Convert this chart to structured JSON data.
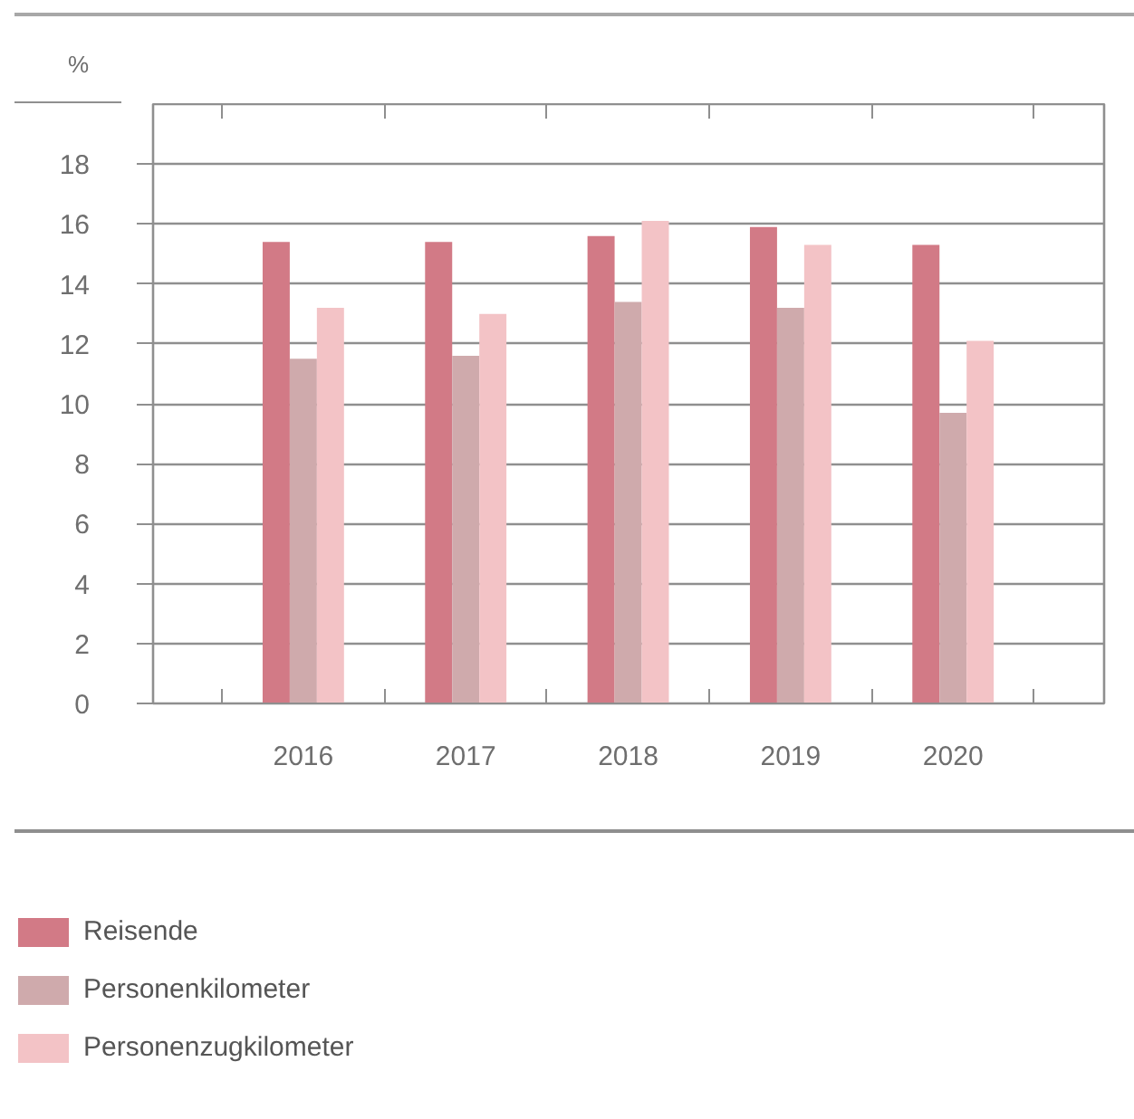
{
  "chart_data": {
    "type": "bar",
    "ylabel": "%",
    "categories": [
      "2016",
      "2017",
      "2018",
      "2019",
      "2020"
    ],
    "series": [
      {
        "name": "Reisende",
        "color": "#d27a86",
        "values": [
          15.4,
          15.4,
          15.6,
          15.9,
          15.3
        ]
      },
      {
        "name": "Personenkilometer",
        "color": "#cfaaac",
        "values": [
          11.5,
          11.6,
          13.4,
          13.2,
          9.7
        ]
      },
      {
        "name": "Personenzugkilometer",
        "color": "#f3c3c6",
        "values": [
          13.2,
          13.0,
          16.1,
          15.3,
          12.1
        ]
      }
    ],
    "ylim": [
      0,
      20
    ],
    "yticks": [
      0,
      2,
      4,
      6,
      8,
      10,
      12,
      14,
      16,
      18
    ],
    "grid": "y",
    "legend": "bottom left"
  }
}
